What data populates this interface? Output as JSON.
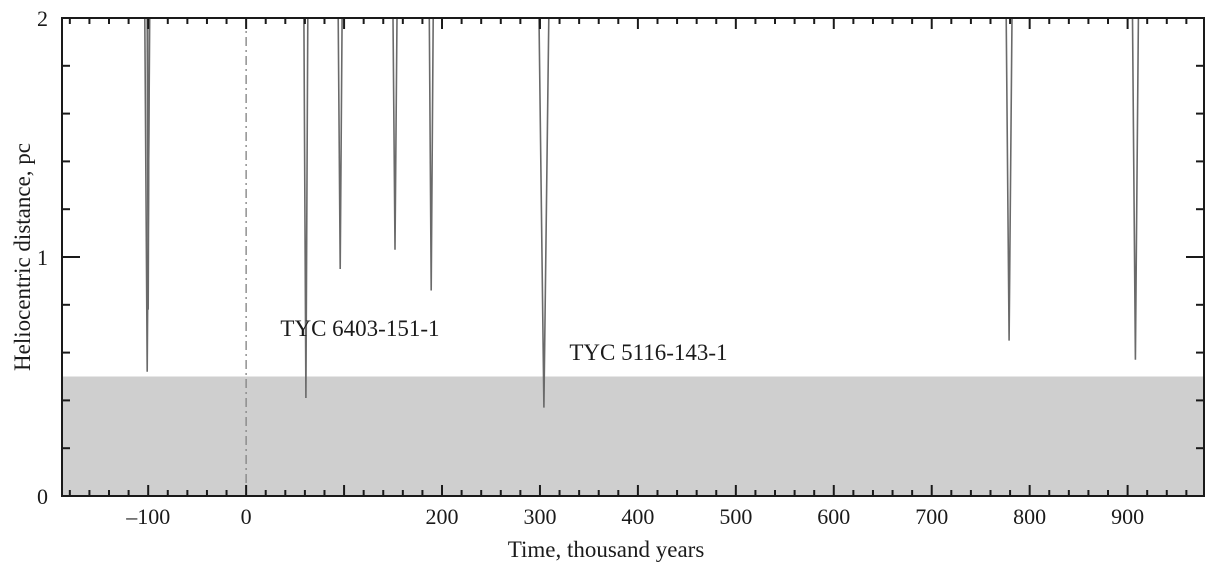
{
  "chart_data": {
    "type": "line",
    "xlabel": "Time, thousand years",
    "ylabel": "Heliocentric distance, pc",
    "xlim": [
      -188,
      978
    ],
    "ylim": [
      0,
      2
    ],
    "x_ticks": [
      -100,
      0,
      200,
      300,
      400,
      500,
      600,
      700,
      800,
      900
    ],
    "x_tick_labels": [
      "–100",
      "0",
      "200",
      "300",
      "400",
      "500",
      "600",
      "700",
      "800",
      "900"
    ],
    "y_ticks": [
      0,
      1,
      2
    ],
    "y_tick_labels": [
      "0",
      "1",
      "2"
    ],
    "grid": false,
    "shaded_band": {
      "y_from": 0,
      "y_to": 0.5,
      "color": "#cfcfcf"
    },
    "reference_line": {
      "x": 0,
      "style": "dash-dot",
      "color": "#888888"
    },
    "series": [
      {
        "x": [
          -103.5,
          -101,
          -98.5
        ],
        "y": [
          2,
          0.52,
          2
        ]
      },
      {
        "x": [
          -101,
          -100,
          -99
        ],
        "y": [
          2,
          0.78,
          2
        ]
      },
      {
        "x": [
          59,
          61,
          63
        ],
        "y": [
          2,
          0.41,
          2
        ]
      },
      {
        "x": [
          94,
          96,
          98
        ],
        "y": [
          2,
          0.95,
          2
        ]
      },
      {
        "x": [
          150,
          152,
          154
        ],
        "y": [
          2,
          1.03,
          2
        ]
      },
      {
        "x": [
          187,
          189,
          191
        ],
        "y": [
          2,
          0.86,
          2
        ]
      },
      {
        "x": [
          299,
          304,
          309
        ],
        "y": [
          2,
          0.37,
          2
        ]
      },
      {
        "x": [
          776,
          779,
          782
        ],
        "y": [
          2,
          0.65,
          2
        ]
      },
      {
        "x": [
          905,
          908,
          911
        ],
        "y": [
          2,
          0.57,
          2
        ]
      }
    ],
    "annotations": [
      {
        "text": "TYC 6403-151-1",
        "x": 35,
        "y": 0.67
      },
      {
        "text": "TYC 5116-143-1",
        "x": 330,
        "y": 0.57
      }
    ],
    "colors": {
      "curve": "#6a6a6a",
      "axes": "#1a1a1a",
      "band": "#cfcfcf"
    }
  }
}
